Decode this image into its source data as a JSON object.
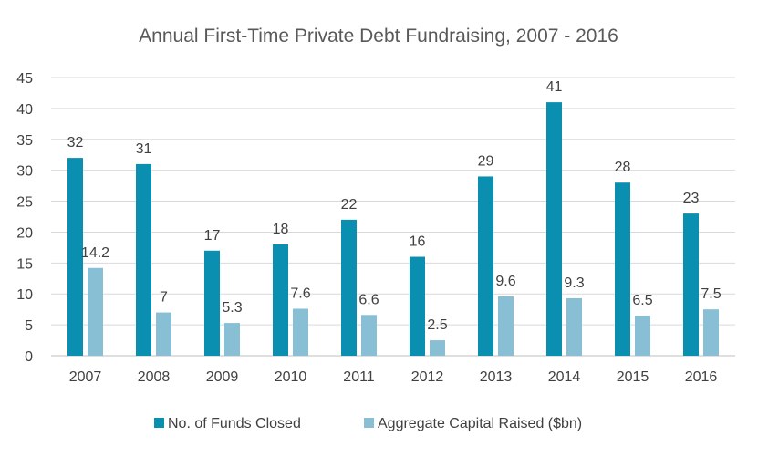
{
  "chart_data": {
    "type": "bar",
    "title": "Annual First-Time Private Debt Fundraising, 2007 - 2016",
    "categories": [
      "2007",
      "2008",
      "2009",
      "2010",
      "2011",
      "2012",
      "2013",
      "2014",
      "2015",
      "2016"
    ],
    "series": [
      {
        "name": "No. of Funds Closed",
        "color": "#0b8fb0",
        "values": [
          32,
          31,
          17,
          18,
          22,
          16,
          29,
          41,
          28,
          23
        ]
      },
      {
        "name": "Aggregate Capital Raised ($bn)",
        "color": "#88bfd5",
        "values": [
          14.2,
          7,
          5.3,
          7.6,
          6.6,
          2.5,
          9.6,
          9.3,
          6.5,
          7.5
        ]
      }
    ],
    "yticks": [
      "0",
      "5",
      "10",
      "15",
      "20",
      "25",
      "30",
      "35",
      "40",
      "45"
    ],
    "ylim": [
      0,
      45
    ],
    "grid": true,
    "legend_position": "bottom",
    "data_labels": true
  }
}
